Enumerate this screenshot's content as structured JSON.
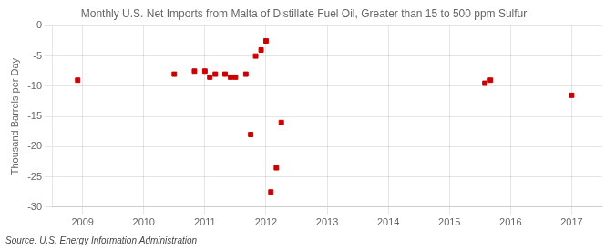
{
  "chart_data": {
    "type": "scatter",
    "title": "Monthly U.S. Net Imports from Malta of Distillate Fuel Oil, Greater than 15 to 500 ppm Sulfur",
    "ylabel": "Thousand Barrels per Day",
    "annotations": [
      "Source: U.S. Energy Information Administration"
    ],
    "color": "#cc0000",
    "marker": "square",
    "x": [
      2008.92,
      2010.5,
      2010.83,
      2011.0,
      2011.08,
      2011.17,
      2011.33,
      2011.42,
      2011.5,
      2011.67,
      2011.75,
      2011.83,
      2011.92,
      2012.0,
      2012.08,
      2012.17,
      2012.25,
      2015.58,
      2015.67,
      2017.0
    ],
    "values": [
      -9.0,
      -8.0,
      -7.5,
      -7.5,
      -8.5,
      -8.0,
      -8.0,
      -8.5,
      -8.5,
      -8.0,
      -18.0,
      -5.0,
      -4.0,
      -2.5,
      -27.5,
      -23.5,
      -16.0,
      -9.5,
      -9.0,
      -11.5
    ],
    "xlim": [
      2008.5,
      2017.5
    ],
    "xticks": [
      2009,
      2010,
      2011,
      2012,
      2013,
      2014,
      2015,
      2016,
      2017
    ],
    "ylim": [
      -30,
      0
    ],
    "yticks": [
      0,
      -5,
      -10,
      -15,
      -20,
      -25,
      -30
    ],
    "grid": true
  }
}
